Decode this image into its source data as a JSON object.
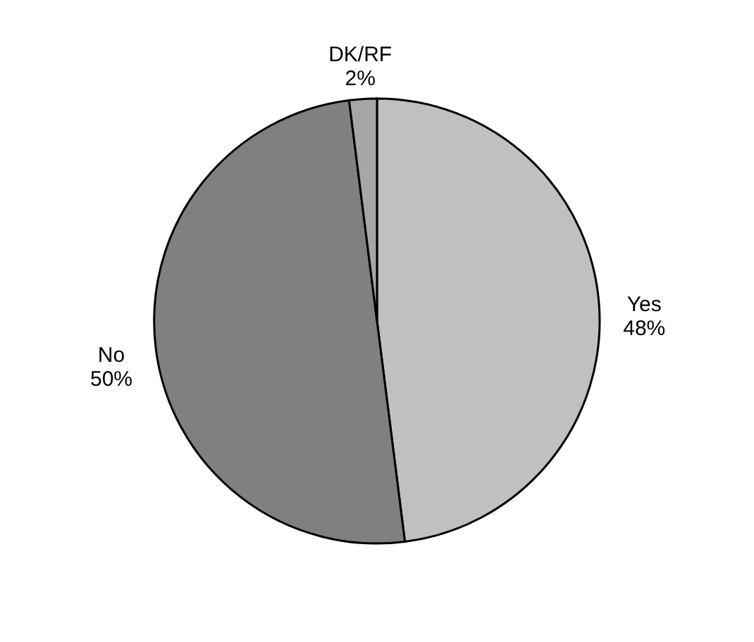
{
  "chart_data": {
    "type": "pie",
    "categories": [
      "Yes",
      "No",
      "DK/RF"
    ],
    "values": [
      48,
      50,
      2
    ],
    "value_labels": [
      "48%",
      "50%",
      "2%"
    ],
    "colors": [
      "#c0c0c0",
      "#808080",
      "#a6a6a6"
    ],
    "legend": false
  }
}
